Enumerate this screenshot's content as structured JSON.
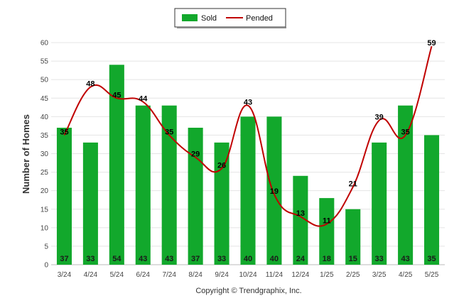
{
  "chart_data": {
    "type": "bar",
    "categories": [
      "3/24",
      "4/24",
      "5/24",
      "6/24",
      "7/24",
      "8/24",
      "9/24",
      "10/24",
      "11/24",
      "12/24",
      "1/25",
      "2/25",
      "3/25",
      "4/25",
      "5/25"
    ],
    "series": [
      {
        "name": "Sold",
        "type": "bar",
        "color": "#12a82c",
        "values": [
          37,
          33,
          54,
          43,
          43,
          37,
          33,
          40,
          40,
          24,
          18,
          15,
          33,
          43,
          35
        ]
      },
      {
        "name": "Pended",
        "type": "line",
        "color": "#c00000",
        "values": [
          35,
          48,
          45,
          44,
          35,
          29,
          26,
          43,
          19,
          13,
          11,
          21,
          39,
          35,
          59
        ]
      }
    ],
    "ylabel": "Number of Homes",
    "xlabel": "",
    "ylim": [
      0,
      60
    ],
    "yticks": [
      0,
      5,
      10,
      15,
      20,
      25,
      30,
      35,
      40,
      45,
      50,
      55,
      60
    ],
    "grid": true,
    "legend_position": "top-center"
  },
  "footer": {
    "copyright": "Copyright © Trendgraphix, Inc."
  }
}
